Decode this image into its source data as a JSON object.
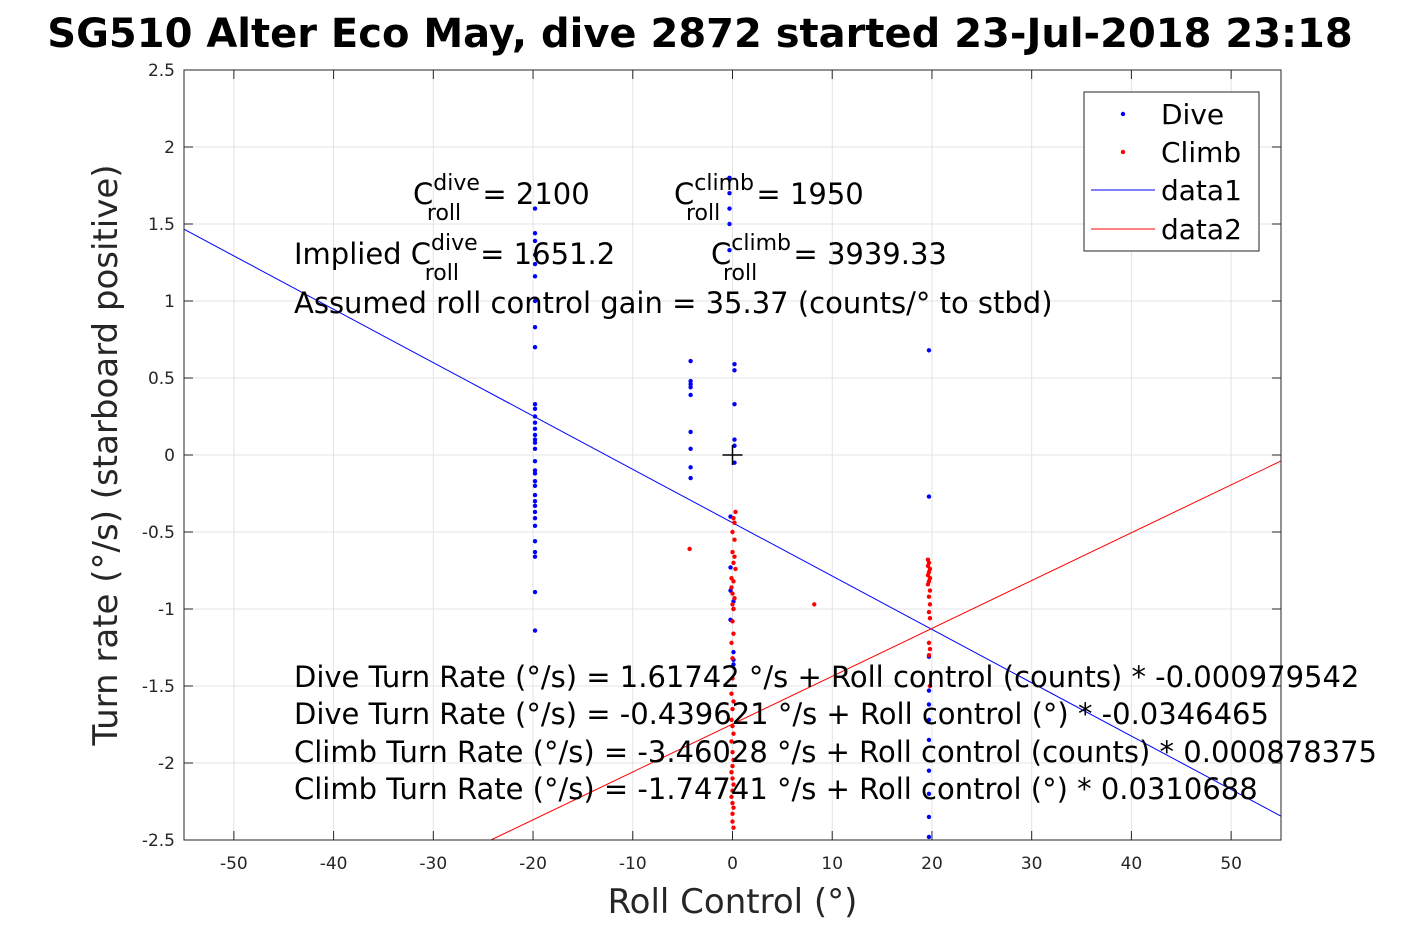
{
  "chart_data": {
    "type": "scatter",
    "title": "SG510 Alter Eco May, dive 2872 started 23-Jul-2018 23:18",
    "xlabel": "Roll Control (°)",
    "ylabel": "Turn rate (°/s) (starboard positive)",
    "xlim": [
      -55,
      55
    ],
    "ylim": [
      -2.5,
      2.5
    ],
    "xticks": [
      -50,
      -40,
      -30,
      -20,
      -10,
      0,
      10,
      20,
      30,
      40,
      50
    ],
    "yticks": [
      -2.5,
      -2,
      -1.5,
      -1,
      -0.5,
      0,
      0.5,
      1,
      1.5,
      2,
      2.5
    ],
    "grid": true,
    "legend": {
      "placement": "top-right",
      "entries": [
        {
          "label": "Dive",
          "color": "#0000ff",
          "kind": "marker"
        },
        {
          "label": "Climb",
          "color": "#ff0000",
          "kind": "marker"
        },
        {
          "label": "data1",
          "color": "#0000ff",
          "kind": "line"
        },
        {
          "label": "data2",
          "color": "#ff0000",
          "kind": "line"
        }
      ]
    },
    "series": [
      {
        "name": "Dive",
        "color": "#0000ff",
        "points": [
          [
            -19.8,
            1.6
          ],
          [
            -19.8,
            1.44
          ],
          [
            -19.8,
            1.39
          ],
          [
            -19.8,
            1.3
          ],
          [
            -19.8,
            1.24
          ],
          [
            -19.8,
            1.16
          ],
          [
            -19.8,
            1.0
          ],
          [
            -19.8,
            0.83
          ],
          [
            -19.8,
            0.7
          ],
          [
            -19.8,
            0.33
          ],
          [
            -19.8,
            0.3
          ],
          [
            -19.8,
            0.25
          ],
          [
            -19.8,
            0.21
          ],
          [
            -19.8,
            0.17
          ],
          [
            -19.8,
            0.13
          ],
          [
            -19.8,
            0.1
          ],
          [
            -19.8,
            0.08
          ],
          [
            -19.8,
            0.04
          ],
          [
            -19.8,
            -0.04
          ],
          [
            -19.8,
            -0.1
          ],
          [
            -19.8,
            -0.12
          ],
          [
            -19.8,
            -0.17
          ],
          [
            -19.8,
            -0.2
          ],
          [
            -19.8,
            -0.26
          ],
          [
            -19.8,
            -0.3
          ],
          [
            -19.8,
            -0.33
          ],
          [
            -19.8,
            -0.37
          ],
          [
            -19.8,
            -0.41
          ],
          [
            -19.8,
            -0.46
          ],
          [
            -19.8,
            -0.56
          ],
          [
            -19.8,
            -0.63
          ],
          [
            -19.8,
            -0.66
          ],
          [
            -19.8,
            -0.89
          ],
          [
            -19.8,
            -1.14
          ],
          [
            -4.2,
            0.61
          ],
          [
            -4.2,
            0.48
          ],
          [
            -4.2,
            0.46
          ],
          [
            -4.2,
            0.44
          ],
          [
            -4.2,
            0.39
          ],
          [
            -4.2,
            0.15
          ],
          [
            -4.2,
            0.04
          ],
          [
            -4.2,
            -0.08
          ],
          [
            -4.2,
            -0.15
          ],
          [
            -0.3,
            1.8
          ],
          [
            -0.3,
            1.7
          ],
          [
            -0.3,
            1.6
          ],
          [
            -0.3,
            1.5
          ],
          [
            -0.3,
            1.33
          ],
          [
            0.2,
            0.59
          ],
          [
            0.2,
            0.55
          ],
          [
            0.2,
            0.33
          ],
          [
            0.2,
            0.1
          ],
          [
            0.2,
            0.06
          ],
          [
            0.2,
            -0.05
          ],
          [
            -0.2,
            -0.4
          ],
          [
            -0.2,
            -0.73
          ],
          [
            -0.2,
            -0.88
          ],
          [
            0.1,
            -0.95
          ],
          [
            0.1,
            -1.0
          ],
          [
            -0.2,
            -1.07
          ],
          [
            0.1,
            -1.28
          ],
          [
            0.1,
            -1.33
          ],
          [
            0.1,
            -1.36
          ],
          [
            19.7,
            0.68
          ],
          [
            19.7,
            -0.27
          ],
          [
            19.7,
            -1.31
          ],
          [
            19.7,
            -1.53
          ],
          [
            19.7,
            -1.62
          ],
          [
            19.7,
            -1.72
          ],
          [
            19.7,
            -1.85
          ],
          [
            19.7,
            -2.05
          ],
          [
            19.7,
            -2.2
          ],
          [
            19.7,
            -2.35
          ],
          [
            19.7,
            -2.48
          ]
        ]
      },
      {
        "name": "Climb",
        "color": "#ff0000",
        "points": [
          [
            -4.3,
            -0.61
          ],
          [
            8.2,
            -0.97
          ],
          [
            0.3,
            -0.37
          ],
          [
            0.1,
            -0.41
          ],
          [
            0.2,
            -0.44
          ],
          [
            0.0,
            -0.5
          ],
          [
            0.2,
            -0.55
          ],
          [
            0.0,
            -0.63
          ],
          [
            0.2,
            -0.66
          ],
          [
            0.1,
            -0.7
          ],
          [
            0.3,
            -0.74
          ],
          [
            -0.1,
            -0.8
          ],
          [
            0.1,
            -0.82
          ],
          [
            -0.1,
            -0.86
          ],
          [
            0.0,
            -0.9
          ],
          [
            0.2,
            -0.93
          ],
          [
            0.0,
            -0.97
          ],
          [
            0.1,
            -1.0
          ],
          [
            0.0,
            -1.08
          ],
          [
            0.1,
            -1.16
          ],
          [
            -0.1,
            -1.22
          ],
          [
            0.0,
            -1.32
          ],
          [
            0.0,
            -1.45
          ],
          [
            -0.1,
            -1.55
          ],
          [
            0.1,
            -1.6
          ],
          [
            0.0,
            -1.65
          ],
          [
            -0.1,
            -1.72
          ],
          [
            0.0,
            -1.76
          ],
          [
            0.1,
            -1.81
          ],
          [
            -0.1,
            -1.86
          ],
          [
            0.0,
            -1.93
          ],
          [
            0.1,
            -1.98
          ],
          [
            0.0,
            -2.02
          ],
          [
            -0.1,
            -2.06
          ],
          [
            0.0,
            -2.1
          ],
          [
            0.1,
            -2.14
          ],
          [
            0.0,
            -2.18
          ],
          [
            -0.1,
            -2.22
          ],
          [
            0.0,
            -2.26
          ],
          [
            0.1,
            -2.29
          ],
          [
            0.0,
            -2.33
          ],
          [
            0.0,
            -2.38
          ],
          [
            0.1,
            -2.42
          ],
          [
            19.6,
            -0.68
          ],
          [
            19.7,
            -0.7
          ],
          [
            19.6,
            -0.72
          ],
          [
            19.8,
            -0.74
          ],
          [
            19.7,
            -0.76
          ],
          [
            19.6,
            -0.78
          ],
          [
            19.8,
            -0.8
          ],
          [
            19.7,
            -0.82
          ],
          [
            19.6,
            -0.84
          ],
          [
            19.8,
            -0.88
          ],
          [
            19.7,
            -0.92
          ],
          [
            19.8,
            -0.97
          ],
          [
            19.7,
            -1.02
          ],
          [
            19.8,
            -1.06
          ],
          [
            19.7,
            -1.22
          ],
          [
            19.8,
            -1.26
          ],
          [
            19.7,
            -1.3
          ],
          [
            19.8,
            -1.5
          ]
        ]
      },
      {
        "name": "data1",
        "color": "#0000ff",
        "line": {
          "slope": -0.0346465,
          "intercept": -0.439621
        }
      },
      {
        "name": "data2",
        "color": "#ff0000",
        "line": {
          "slope": 0.0310688,
          "intercept": -1.74741
        }
      }
    ],
    "annotations": {
      "cdive_base": "C",
      "cdive_sup": "dive",
      "cdive_sub": "roll",
      "cdive_val": " = 2100",
      "cclimb_base": "C",
      "cclimb_sup": "climb",
      "cclimb_sub": "roll",
      "cclimb_val": " = 1950",
      "implied_prefix": "Implied C",
      "implied_dive_sup": "dive",
      "implied_dive_sub": "roll",
      "implied_dive_val": " = 1651.2",
      "implied_climb_base": "C",
      "implied_climb_sup": "climb",
      "implied_climb_sub": "roll",
      "implied_climb_val": " = 3939.33",
      "gain": "Assumed roll control gain = 35.37 (counts/° to stbd)",
      "eq1": "Dive Turn Rate (°/s) = 1.61742 °/s + Roll control (counts) * -0.000979542",
      "eq2": "Dive Turn Rate (°/s) = -0.439621 °/s + Roll control (°) * -0.0346465",
      "eq3": "Climb Turn Rate (°/s) = -3.46028 °/s + Roll control (counts) * 0.000878375",
      "eq4": "Climb Turn Rate (°/s) = -1.74741 °/s + Roll control (°) * 0.0310688"
    }
  }
}
